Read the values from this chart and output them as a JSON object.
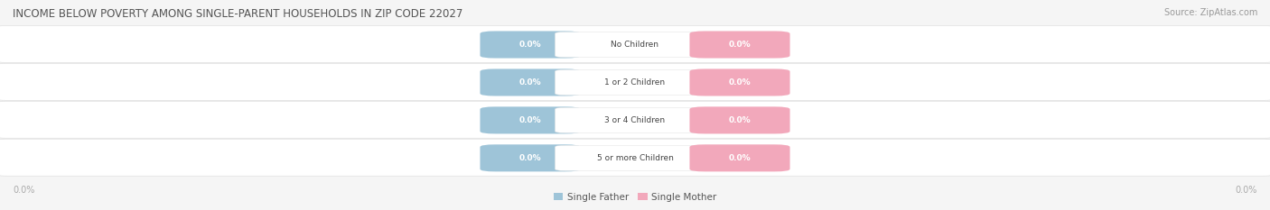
{
  "title": "INCOME BELOW POVERTY AMONG SINGLE-PARENT HOUSEHOLDS IN ZIP CODE 22027",
  "source": "Source: ZipAtlas.com",
  "categories": [
    "No Children",
    "1 or 2 Children",
    "3 or 4 Children",
    "5 or more Children"
  ],
  "single_father_values": [
    0.0,
    0.0,
    0.0,
    0.0
  ],
  "single_mother_values": [
    0.0,
    0.0,
    0.0,
    0.0
  ],
  "father_color": "#9ec4d8",
  "mother_color": "#f2a8bb",
  "fig_bg_color": "#f5f5f5",
  "row_bg_color": "#efefef",
  "row_border_color": "#e0e0e0",
  "title_color": "#555555",
  "source_color": "#999999",
  "label_text_color": "#ffffff",
  "category_text_color": "#444444",
  "axis_label_color": "#aaaaaa",
  "legend_text_color": "#555555",
  "figsize": [
    14.06,
    2.33
  ],
  "dpi": 100
}
